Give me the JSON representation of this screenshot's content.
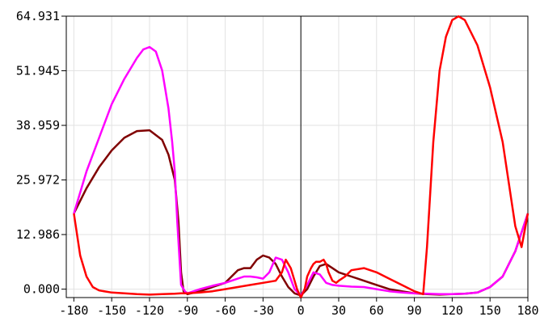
{
  "chart_data": {
    "type": "line",
    "title": "",
    "xlabel": "",
    "ylabel": "",
    "xlim": [
      -186,
      180
    ],
    "ylim": [
      -2,
      64.931
    ],
    "x_ticks": [
      -180,
      -150,
      -120,
      -90,
      -60,
      -30,
      0,
      30,
      60,
      90,
      120,
      150,
      180
    ],
    "x_tick_labels": [
      "-180",
      "-150",
      "-120",
      "-90",
      "-60",
      "-30",
      "0",
      "30",
      "60",
      "90",
      "120",
      "150",
      "180"
    ],
    "y_ticks": [
      0.0,
      12.986,
      25.972,
      38.959,
      51.945,
      64.931
    ],
    "y_tick_labels": [
      "0.000",
      "12.986",
      "25.972",
      "38.959",
      "51.945",
      "64.931"
    ],
    "grid": true,
    "legend": "none",
    "series": [
      {
        "color": "#800000",
        "x": [
          -180,
          -170,
          -160,
          -150,
          -140,
          -130,
          -120,
          -110,
          -105,
          -100,
          -97,
          -95,
          -93,
          -90,
          -80,
          -70,
          -60,
          -55,
          -50,
          -45,
          -40,
          -35,
          -30,
          -25,
          -20,
          -15,
          -10,
          -5,
          0,
          5,
          10,
          15,
          20,
          25,
          30,
          35,
          40,
          45,
          50,
          60,
          70,
          80,
          90,
          100,
          110,
          120,
          130,
          140,
          150,
          160,
          170,
          180
        ],
        "values": [
          18,
          24,
          29,
          33,
          36,
          37.6,
          37.8,
          35.5,
          32,
          26,
          16,
          4,
          -0.5,
          -1.2,
          -0.5,
          0.5,
          1.5,
          3,
          4.5,
          5,
          5,
          7,
          8,
          7.5,
          6,
          3,
          0.5,
          -1,
          -1.5,
          0,
          3,
          5.5,
          6,
          5,
          4,
          3.5,
          3,
          2.5,
          2,
          1,
          0,
          -0.5,
          -1,
          -1.2,
          -1.3,
          -1.2,
          -1.1,
          -0.8,
          0.5,
          3,
          9,
          18
        ]
      },
      {
        "color": "#ff00ff",
        "x": [
          -180,
          -170,
          -160,
          -150,
          -140,
          -130,
          -125,
          -120,
          -115,
          -110,
          -105,
          -102,
          -100,
          -98,
          -95,
          -92,
          -90,
          -80,
          -70,
          -60,
          -55,
          -50,
          -45,
          -40,
          -35,
          -30,
          -25,
          -20,
          -15,
          -10,
          -5,
          0,
          5,
          10,
          15,
          20,
          25,
          30,
          40,
          50,
          60,
          70,
          80,
          90,
          100,
          110,
          120,
          130,
          140,
          150,
          160,
          170,
          180
        ],
        "values": [
          18,
          28,
          36,
          44,
          50,
          55,
          57,
          57.6,
          56.5,
          52,
          43,
          35,
          28,
          16,
          1,
          -0.5,
          -1,
          0,
          0.8,
          1.5,
          2,
          2.5,
          3,
          3,
          2.8,
          2.5,
          4,
          7.5,
          7,
          4,
          0,
          -1.5,
          1,
          4,
          3.5,
          1.5,
          1,
          0.8,
          0.6,
          0.5,
          0,
          -0.5,
          -0.8,
          -1,
          -1.1,
          -1.2,
          -1.2,
          -1.1,
          -0.8,
          0.5,
          3,
          9,
          18
        ]
      },
      {
        "color": "#ff0000",
        "x": [
          -180,
          -175,
          -170,
          -165,
          -160,
          -150,
          -140,
          -130,
          -120,
          -110,
          -100,
          -95,
          -90,
          -80,
          -70,
          -60,
          -50,
          -40,
          -30,
          -20,
          -15,
          -12,
          -8,
          -5,
          -3,
          0,
          3,
          5,
          8,
          10,
          12,
          15,
          18,
          20,
          22,
          25,
          28,
          30,
          35,
          40,
          50,
          60,
          70,
          80,
          90,
          95,
          97,
          100,
          105,
          110,
          115,
          120,
          125,
          130,
          140,
          150,
          160,
          165,
          170,
          175,
          180
        ],
        "values": [
          18,
          8,
          3,
          0.5,
          -0.3,
          -0.8,
          -1,
          -1.2,
          -1.3,
          -1.2,
          -1.1,
          -1,
          -1,
          -0.8,
          -0.5,
          0,
          0.5,
          1,
          1.5,
          2,
          4,
          7,
          5,
          2,
          0,
          -2,
          0,
          3,
          5,
          6,
          6.5,
          6.5,
          7,
          6,
          4,
          2,
          1.5,
          2,
          3,
          4.5,
          5,
          4,
          2.5,
          1,
          -0.5,
          -1,
          -1.2,
          10,
          35,
          52,
          60,
          64,
          64.9,
          64,
          58,
          48,
          35,
          25,
          15,
          10,
          18
        ]
      }
    ]
  },
  "colors": {
    "axis": "#000000",
    "grid": "#e2e2e2",
    "zero_line": "#000000"
  }
}
